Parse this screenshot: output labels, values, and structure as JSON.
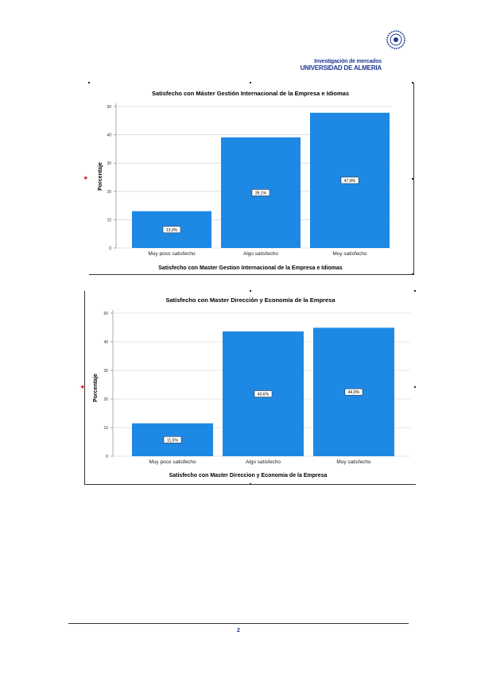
{
  "header": {
    "line1": "Investigación de mercados",
    "line2": "UNIVERSIDAD DE ALMERIA"
  },
  "colors": {
    "bar": "#1e88e5",
    "grid": "#cccccc",
    "brand": "#1f3a93"
  },
  "chart_data": [
    {
      "type": "bar",
      "title": "Satisfecho con Máster Gestión Internacional de la Empresa e Idiomas",
      "xlabel": "Satisfecho con Master Gestion Internacional de la Empresa e Idiomas",
      "ylabel": "Porcentaje",
      "categories": [
        "Muy poco satisfecho",
        "Algo satisfecho",
        "Muy satisfecho"
      ],
      "values": [
        13.0,
        39.1,
        47.8
      ],
      "data_labels": [
        "13,0%",
        "39,1%",
        "47,8%"
      ],
      "ylim": [
        0,
        50
      ],
      "yticks": [
        0,
        10,
        20,
        30,
        40,
        50
      ],
      "grid": true
    },
    {
      "type": "bar",
      "title": "Satisfecho con Master Dirección y Economía de la Empresa",
      "xlabel": "Satisfecho con Master Direccion y Economia de la Empresa",
      "ylabel": "Porcentaje",
      "categories": [
        "Muy poco satisfecho",
        "Algo satisfecho",
        "Muy satisfecho"
      ],
      "values": [
        11.5,
        43.6,
        44.9
      ],
      "data_labels": [
        "11,5%",
        "43,6%",
        "44,9%"
      ],
      "ylim": [
        0,
        50
      ],
      "yticks": [
        0,
        10,
        20,
        30,
        40,
        50
      ],
      "grid": true
    }
  ],
  "footer": {
    "page_number": "2"
  }
}
